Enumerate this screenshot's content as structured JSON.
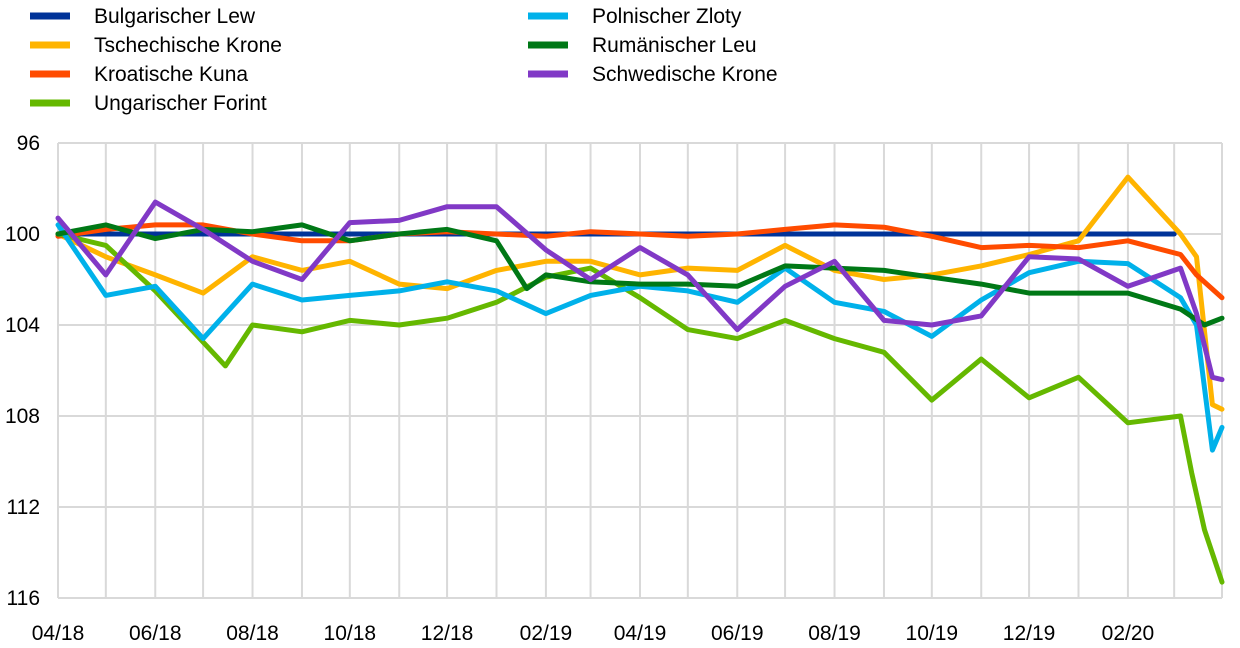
{
  "chart_data": {
    "type": "line",
    "title": "",
    "xlabel": "",
    "ylabel": "",
    "y_inverted": true,
    "ylim": [
      96,
      116
    ],
    "yticks": [
      "96",
      "100",
      "104",
      "108",
      "112",
      "116"
    ],
    "ytick_values": [
      96,
      100,
      104,
      108,
      112,
      116
    ],
    "xlim": [
      "2018-04-01",
      "2020-03-31"
    ],
    "xtick_labels": [
      "04/18",
      "06/18",
      "08/18",
      "10/18",
      "12/18",
      "02/19",
      "04/19",
      "06/19",
      "08/19",
      "10/19",
      "12/19",
      "02/20"
    ],
    "grid": "vertical and horizontal",
    "legend_position": "top-left",
    "series": [
      {
        "name": "Bulgarischer Lew",
        "color": "#003399",
        "x": [
          "2018-04",
          "2018-06",
          "2018-08",
          "2018-10",
          "2018-12",
          "2019-02",
          "2019-04",
          "2019-06",
          "2019-08",
          "2019-10",
          "2019-12",
          "2020-02",
          "2020-03"
        ],
        "values": [
          100.0,
          100.0,
          100.0,
          100.0,
          100.0,
          100.0,
          100.0,
          100.0,
          100.0,
          100.0,
          100.0,
          100.0,
          100.0
        ]
      },
      {
        "name": "Tschechische Krone",
        "color": "#ffb400",
        "x": [
          "2018-04",
          "2018-05",
          "2018-06",
          "2018-07",
          "2018-08",
          "2018-09",
          "2018-10",
          "2018-11",
          "2018-12",
          "2019-01",
          "2019-02",
          "2019-03",
          "2019-04",
          "2019-05",
          "2019-06",
          "2019-07",
          "2019-08",
          "2019-09",
          "2019-10",
          "2019-11",
          "2019-12",
          "2020-01",
          "2020-02",
          "2020-03-05",
          "2020-03-15",
          "2020-03-25",
          "2020-03-31"
        ],
        "values": [
          100.0,
          101.0,
          101.8,
          102.6,
          101.0,
          101.6,
          101.2,
          102.2,
          102.4,
          101.6,
          101.2,
          101.2,
          101.8,
          101.5,
          101.6,
          100.5,
          101.6,
          102.0,
          101.8,
          101.4,
          100.9,
          100.3,
          97.5,
          100.0,
          101.0,
          107.5,
          107.7
        ]
      },
      {
        "name": "Kroatische Kuna",
        "color": "#ff4b00",
        "x": [
          "2018-04",
          "2018-05",
          "2018-06",
          "2018-07",
          "2018-08",
          "2018-09",
          "2018-10",
          "2018-11",
          "2018-12",
          "2019-01",
          "2019-02",
          "2019-03",
          "2019-04",
          "2019-05",
          "2019-06",
          "2019-07",
          "2019-08",
          "2019-09",
          "2019-10",
          "2019-11",
          "2019-12",
          "2020-01",
          "2020-02",
          "2020-03-05",
          "2020-03-15",
          "2020-03-31"
        ],
        "values": [
          100.1,
          99.8,
          99.6,
          99.6,
          100.0,
          100.3,
          100.3,
          100.0,
          99.9,
          100.0,
          100.1,
          99.9,
          100.0,
          100.1,
          100.0,
          99.8,
          99.6,
          99.7,
          100.1,
          100.6,
          100.5,
          100.6,
          100.3,
          100.9,
          101.8,
          102.8
        ]
      },
      {
        "name": "Ungarischer Forint",
        "color": "#65b800",
        "x": [
          "2018-04",
          "2018-05",
          "2018-06",
          "2018-07-15",
          "2018-08",
          "2018-09",
          "2018-10",
          "2018-11",
          "2018-12",
          "2019-01",
          "2019-02",
          "2019-03",
          "2019-04",
          "2019-05",
          "2019-06",
          "2019-07",
          "2019-08",
          "2019-09",
          "2019-10",
          "2019-11",
          "2019-12",
          "2020-01",
          "2020-02",
          "2020-03-05",
          "2020-03-12",
          "2020-03-20",
          "2020-03-31"
        ],
        "values": [
          100.0,
          100.5,
          102.5,
          105.8,
          104.0,
          104.3,
          103.8,
          104.0,
          103.7,
          103.0,
          101.9,
          101.5,
          102.8,
          104.2,
          104.6,
          103.8,
          104.6,
          105.2,
          107.3,
          105.5,
          107.2,
          106.3,
          108.3,
          108.0,
          110.5,
          113.0,
          115.3
        ]
      },
      {
        "name": "Polnischer Zloty",
        "color": "#00b1ea",
        "x": [
          "2018-04",
          "2018-05",
          "2018-06",
          "2018-07",
          "2018-08",
          "2018-09",
          "2018-10",
          "2018-11",
          "2018-12",
          "2019-01",
          "2019-02",
          "2019-03",
          "2019-04",
          "2019-05",
          "2019-06",
          "2019-07",
          "2019-08",
          "2019-09",
          "2019-10",
          "2019-11",
          "2019-12",
          "2020-01",
          "2020-02",
          "2020-03-05",
          "2020-03-15",
          "2020-03-25",
          "2020-03-31"
        ],
        "values": [
          99.6,
          102.7,
          102.3,
          104.6,
          102.2,
          102.9,
          102.7,
          102.5,
          102.1,
          102.5,
          103.5,
          102.7,
          102.3,
          102.5,
          103.0,
          101.5,
          103.0,
          103.4,
          104.5,
          102.9,
          101.7,
          101.2,
          101.3,
          102.8,
          104.0,
          109.5,
          108.5
        ]
      },
      {
        "name": "Rumänischer Leu",
        "color": "#007816",
        "x": [
          "2018-04",
          "2018-05",
          "2018-06",
          "2018-07",
          "2018-08",
          "2018-09",
          "2018-10",
          "2018-11",
          "2018-12",
          "2019-01",
          "2019-01-20",
          "2019-02",
          "2019-03",
          "2019-04",
          "2019-05",
          "2019-06",
          "2019-07",
          "2019-08",
          "2019-09",
          "2019-10",
          "2019-11",
          "2019-12",
          "2020-01",
          "2020-02",
          "2020-03-05",
          "2020-03-20",
          "2020-03-31"
        ],
        "values": [
          100.0,
          99.6,
          100.2,
          99.8,
          99.9,
          99.6,
          100.3,
          100.0,
          99.8,
          100.3,
          102.4,
          101.8,
          102.1,
          102.2,
          102.2,
          102.3,
          101.4,
          101.5,
          101.6,
          101.9,
          102.2,
          102.6,
          102.6,
          102.6,
          103.3,
          104.0,
          103.7
        ]
      },
      {
        "name": "Schwedische Krone",
        "color": "#8139c6",
        "x": [
          "2018-04",
          "2018-05",
          "2018-06",
          "2018-07",
          "2018-08",
          "2018-09",
          "2018-10",
          "2018-11",
          "2018-12",
          "2019-01",
          "2019-02",
          "2019-03",
          "2019-04",
          "2019-05",
          "2019-06",
          "2019-07",
          "2019-08",
          "2019-09",
          "2019-10",
          "2019-11",
          "2019-12",
          "2020-01",
          "2020-02",
          "2020-03-05",
          "2020-03-15",
          "2020-03-25",
          "2020-03-31"
        ],
        "values": [
          99.3,
          101.8,
          98.6,
          99.8,
          101.2,
          102.0,
          99.5,
          99.4,
          98.8,
          98.8,
          100.7,
          102.0,
          100.6,
          101.8,
          104.2,
          102.3,
          101.2,
          103.8,
          104.0,
          103.6,
          101.0,
          101.1,
          102.3,
          101.5,
          103.5,
          106.3,
          106.4
        ]
      }
    ]
  }
}
